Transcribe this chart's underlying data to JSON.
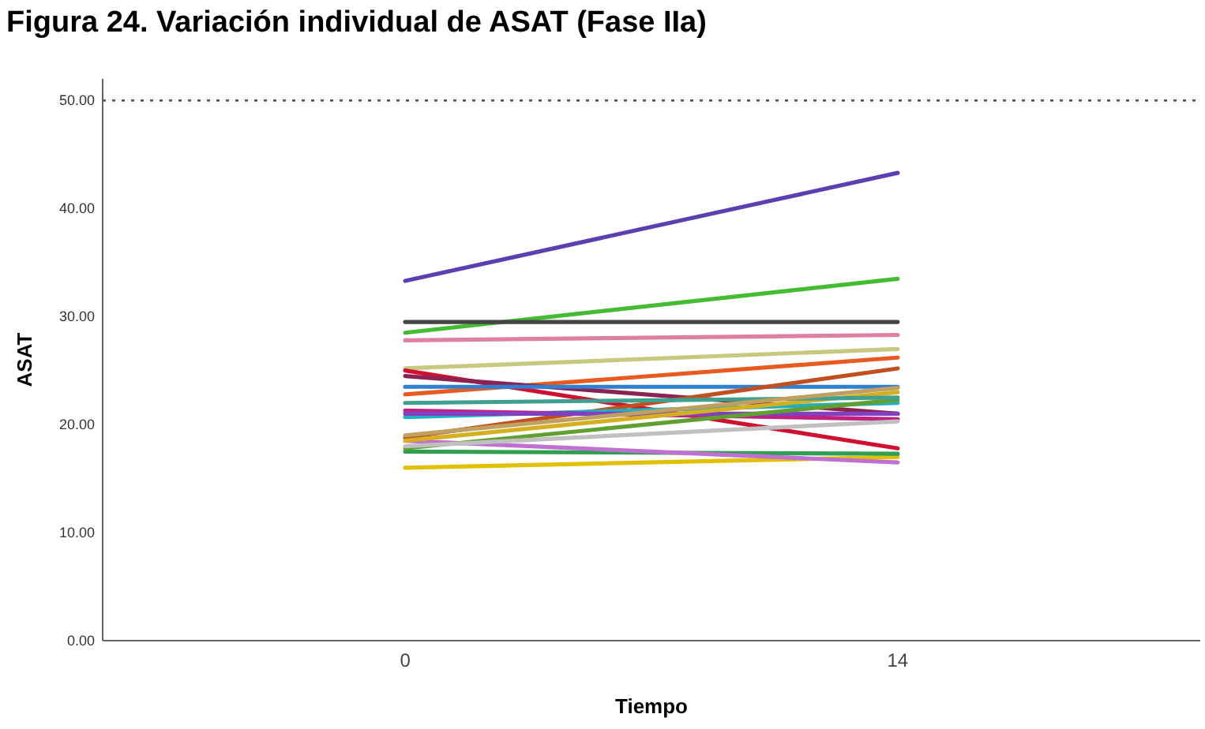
{
  "chart_data": {
    "type": "line",
    "title": "Figura 24. Variación individual de ASAT (Fase IIa)",
    "xlabel": "Tiempo",
    "ylabel": "ASAT",
    "x": [
      0,
      14
    ],
    "xlim": [
      -8.6,
      22.6
    ],
    "xticks": [
      0,
      14
    ],
    "ylim": [
      0,
      52
    ],
    "yticks": [
      {
        "value": 0,
        "label": "0.00"
      },
      {
        "value": 10,
        "label": "10.00"
      },
      {
        "value": 20,
        "label": "20.00"
      },
      {
        "value": 30,
        "label": "30.00"
      },
      {
        "value": 40,
        "label": "40.00"
      },
      {
        "value": 50,
        "label": "50.00"
      }
    ],
    "grid": false,
    "marker": "none",
    "line_style": "solid",
    "ref_lines": [
      {
        "axis": "y",
        "value": 50,
        "color": "#555555",
        "line_style": "dotted"
      }
    ],
    "series": [
      {
        "color": "#5c3fb0",
        "values": [
          33.3,
          43.3
        ]
      },
      {
        "color": "#44bb33",
        "values": [
          28.5,
          33.5
        ]
      },
      {
        "color": "#444444",
        "values": [
          29.5,
          29.5
        ]
      },
      {
        "color": "#e080a0",
        "values": [
          27.8,
          28.3
        ]
      },
      {
        "color": "#c8c880",
        "values": [
          25.2,
          27
        ]
      },
      {
        "color": "#e85a20",
        "values": [
          22.8,
          26.2
        ]
      },
      {
        "color": "#d01030",
        "values": [
          25,
          17.8
        ]
      },
      {
        "color": "#8b2252",
        "values": [
          24.5,
          21
        ]
      },
      {
        "color": "#3080d0",
        "values": [
          23.5,
          23.5
        ]
      },
      {
        "color": "#c05020",
        "values": [
          18.8,
          25.2
        ]
      },
      {
        "color": "#e0c000",
        "values": [
          16,
          17
        ]
      },
      {
        "color": "#30a050",
        "values": [
          17.5,
          17.3
        ]
      },
      {
        "color": "#c070d0",
        "values": [
          18.5,
          16.5
        ]
      },
      {
        "color": "#20b0c0",
        "values": [
          20.7,
          22
        ]
      },
      {
        "color": "#c02080",
        "values": [
          21.3,
          20.5
        ]
      },
      {
        "color": "#8040c0",
        "values": [
          21,
          21
        ]
      },
      {
        "color": "#d4b020",
        "values": [
          18.5,
          23
        ]
      },
      {
        "color": "#60a030",
        "values": [
          17.8,
          22.3
        ]
      },
      {
        "color": "#c0c0c0",
        "values": [
          18,
          20.3
        ]
      },
      {
        "color": "#40a090",
        "values": [
          22,
          22.5
        ]
      },
      {
        "color": "#c0a060",
        "values": [
          19,
          23.4
        ]
      }
    ]
  }
}
